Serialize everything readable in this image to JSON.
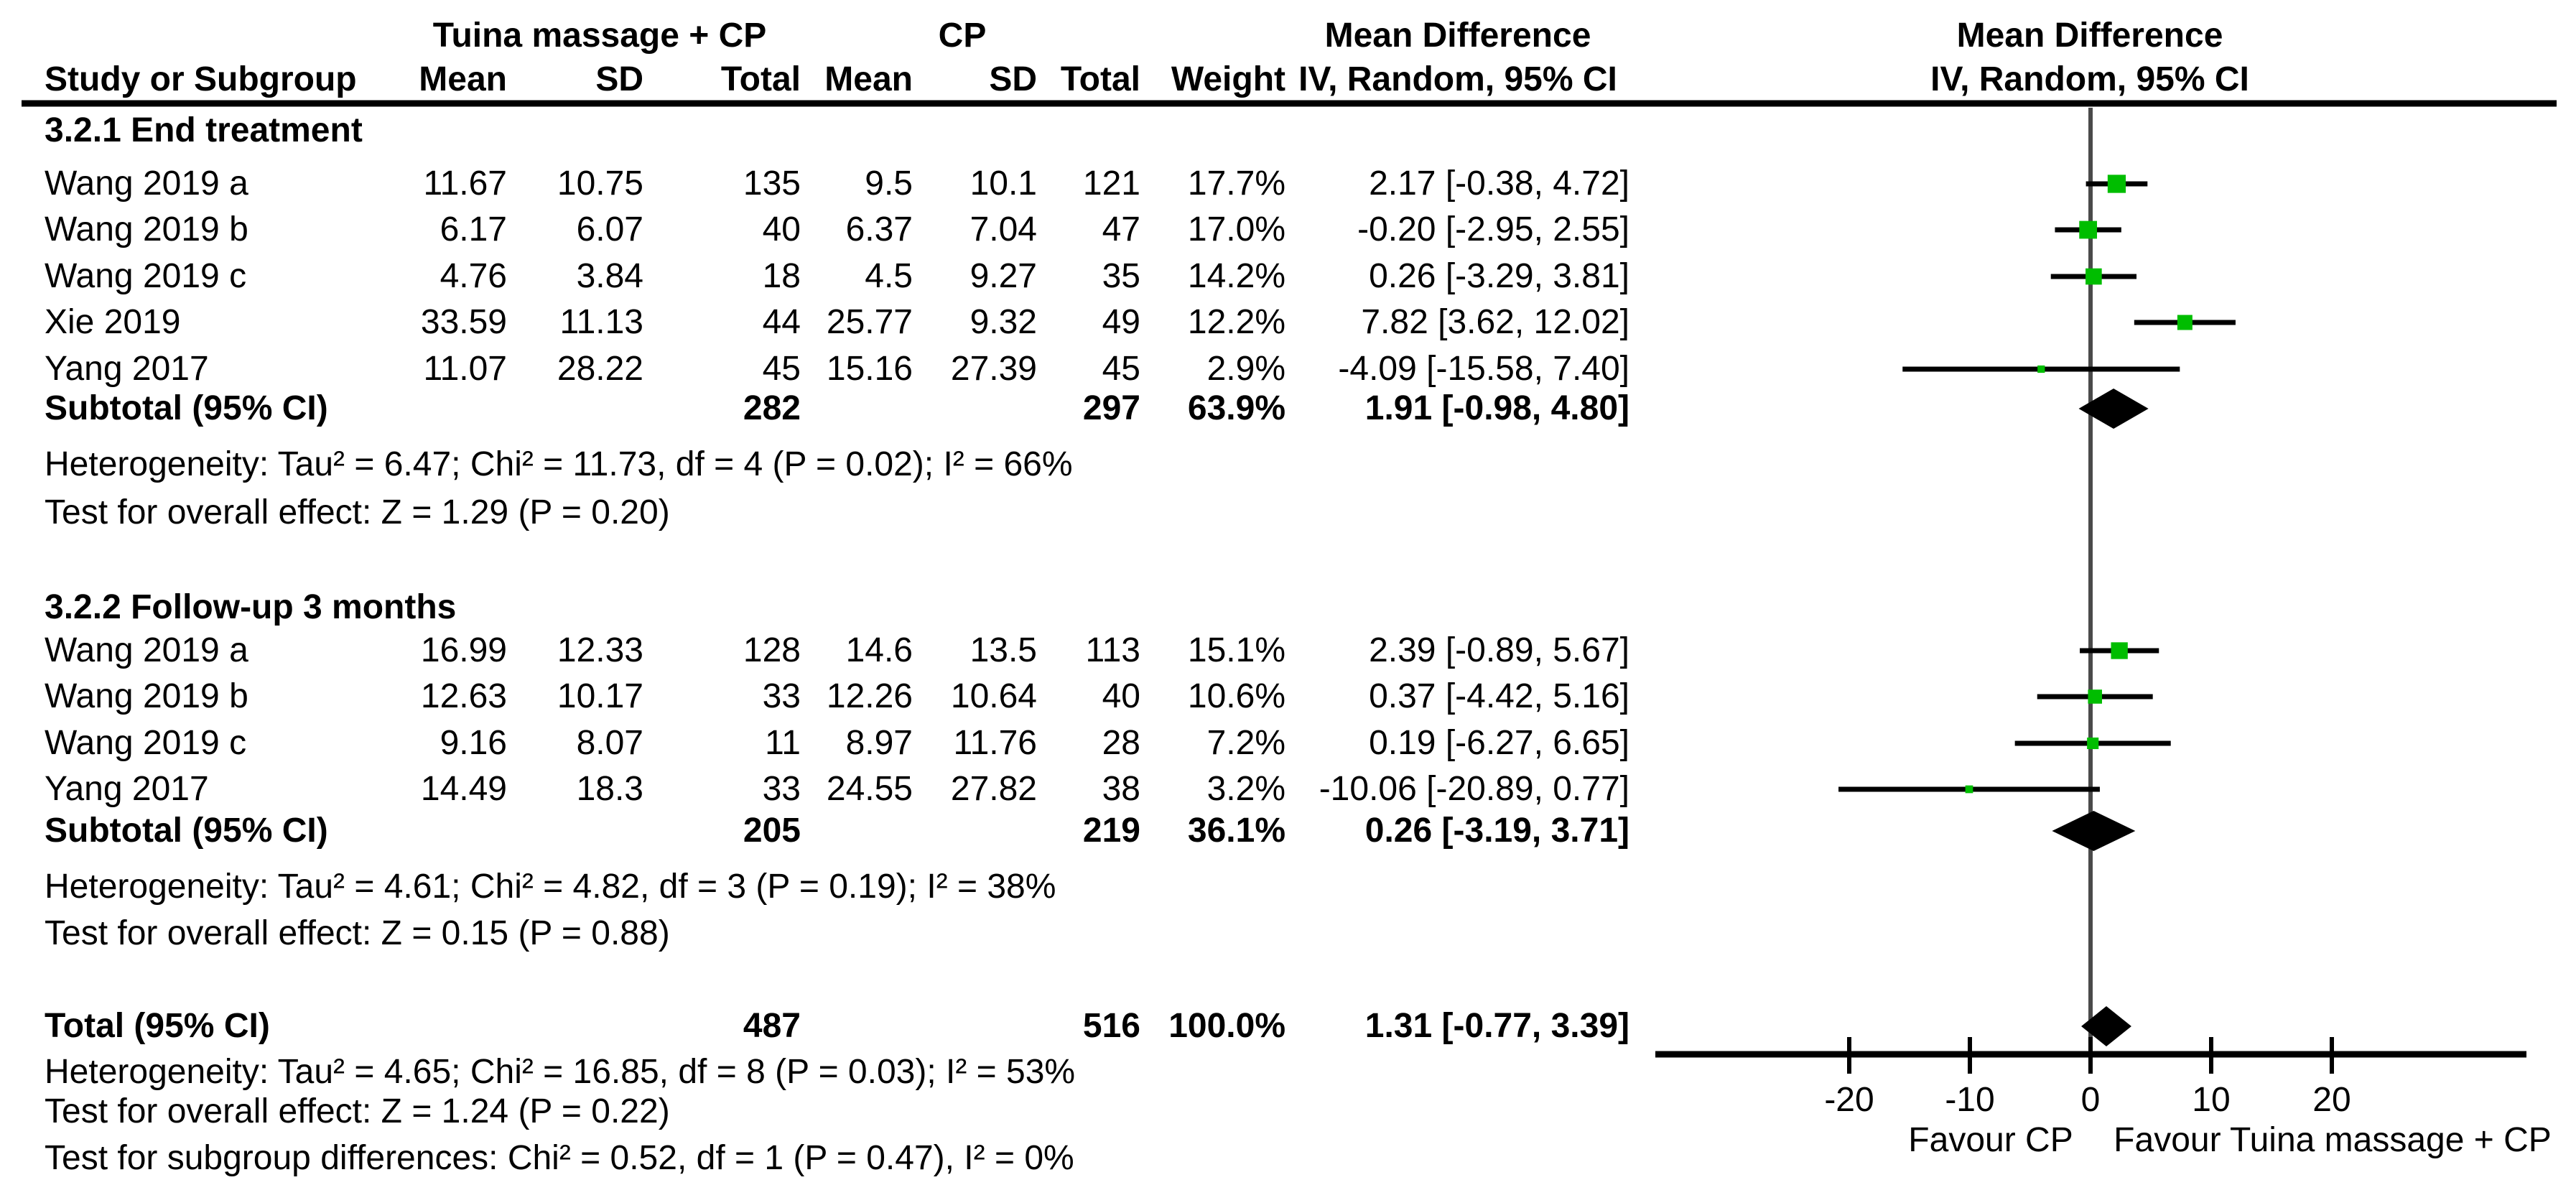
{
  "chart_data": {
    "type": "scatter",
    "subtype": "forest-plot",
    "effect_measure": "Mean Difference",
    "model": "IV, Random, 95% CI",
    "xlim": [
      -36,
      36
    ],
    "x_ticks": [
      -20,
      -10,
      0,
      10,
      20
    ],
    "axis": {
      "favour_left": "Favour CP",
      "favour_right": "Favour Tuina massage + CP"
    },
    "header": {
      "study_col": "Study or Subgroup",
      "group1": "Tuina massage + CP",
      "group2": "CP",
      "mean": "Mean",
      "sd": "SD",
      "total": "Total",
      "weight": "Weight",
      "md_line1": "Mean Difference",
      "md_line2": "IV, Random, 95% CI"
    },
    "sections": [
      {
        "label": "3.2.1 End treatment",
        "studies": [
          {
            "name": "Wang 2019 a",
            "mean1": "11.67",
            "sd1": "10.75",
            "n1": "135",
            "mean2": "9.5",
            "sd2": "10.1",
            "n2": "121",
            "weight": "17.7%",
            "ci": "2.17 [-0.38, 4.72]",
            "md": 2.17,
            "lo": -0.38,
            "hi": 4.72,
            "w": 17.7
          },
          {
            "name": "Wang 2019 b",
            "mean1": "6.17",
            "sd1": "6.07",
            "n1": "40",
            "mean2": "6.37",
            "sd2": "7.04",
            "n2": "47",
            "weight": "17.0%",
            "ci": "-0.20 [-2.95, 2.55]",
            "md": -0.2,
            "lo": -2.95,
            "hi": 2.55,
            "w": 17.0
          },
          {
            "name": "Wang 2019 c",
            "mean1": "4.76",
            "sd1": "3.84",
            "n1": "18",
            "mean2": "4.5",
            "sd2": "9.27",
            "n2": "35",
            "weight": "14.2%",
            "ci": "0.26 [-3.29, 3.81]",
            "md": 0.26,
            "lo": -3.29,
            "hi": 3.81,
            "w": 14.2
          },
          {
            "name": "Xie 2019",
            "mean1": "33.59",
            "sd1": "11.13",
            "n1": "44",
            "mean2": "25.77",
            "sd2": "9.32",
            "n2": "49",
            "weight": "12.2%",
            "ci": "7.82 [3.62, 12.02]",
            "md": 7.82,
            "lo": 3.62,
            "hi": 12.02,
            "w": 12.2
          },
          {
            "name": "Yang 2017",
            "mean1": "11.07",
            "sd1": "28.22",
            "n1": "45",
            "mean2": "15.16",
            "sd2": "27.39",
            "n2": "45",
            "weight": "2.9%",
            "ci": "-4.09 [-15.58, 7.40]",
            "md": -4.09,
            "lo": -15.58,
            "hi": 7.4,
            "w": 2.9
          }
        ],
        "subtotal": {
          "label": "Subtotal (95% CI)",
          "n1": "282",
          "n2": "297",
          "weight": "63.9%",
          "ci": "1.91 [-0.98, 4.80]",
          "md": 1.91,
          "lo": -0.98,
          "hi": 4.8
        },
        "heterogeneity": "Heterogeneity: Tau² = 6.47; Chi² = 11.73, df = 4 (P = 0.02); I² = 66%",
        "overall": "Test for overall effect: Z = 1.29 (P = 0.20)"
      },
      {
        "label": "3.2.2 Follow-up 3 months",
        "studies": [
          {
            "name": "Wang 2019 a",
            "mean1": "16.99",
            "sd1": "12.33",
            "n1": "128",
            "mean2": "14.6",
            "sd2": "13.5",
            "n2": "113",
            "weight": "15.1%",
            "ci": "2.39 [-0.89, 5.67]",
            "md": 2.39,
            "lo": -0.89,
            "hi": 5.67,
            "w": 15.1
          },
          {
            "name": "Wang 2019 b",
            "mean1": "12.63",
            "sd1": "10.17",
            "n1": "33",
            "mean2": "12.26",
            "sd2": "10.64",
            "n2": "40",
            "weight": "10.6%",
            "ci": "0.37 [-4.42, 5.16]",
            "md": 0.37,
            "lo": -4.42,
            "hi": 5.16,
            "w": 10.6
          },
          {
            "name": "Wang 2019 c",
            "mean1": "9.16",
            "sd1": "8.07",
            "n1": "11",
            "mean2": "8.97",
            "sd2": "11.76",
            "n2": "28",
            "weight": "7.2%",
            "ci": "0.19 [-6.27, 6.65]",
            "md": 0.19,
            "lo": -6.27,
            "hi": 6.65,
            "w": 7.2
          },
          {
            "name": "Yang 2017",
            "mean1": "14.49",
            "sd1": "18.3",
            "n1": "33",
            "mean2": "24.55",
            "sd2": "27.82",
            "n2": "38",
            "weight": "3.2%",
            "ci": "-10.06 [-20.89, 0.77]",
            "md": -10.06,
            "lo": -20.89,
            "hi": 0.77,
            "w": 3.2
          }
        ],
        "subtotal": {
          "label": "Subtotal (95% CI)",
          "n1": "205",
          "n2": "219",
          "weight": "36.1%",
          "ci": "0.26 [-3.19, 3.71]",
          "md": 0.26,
          "lo": -3.19,
          "hi": 3.71
        },
        "heterogeneity": "Heterogeneity: Tau² = 4.61; Chi² = 4.82, df = 3 (P = 0.19); I² = 38%",
        "overall": "Test for overall effect: Z = 0.15 (P = 0.88)"
      }
    ],
    "total": {
      "label": "Total (95% CI)",
      "n1": "487",
      "n2": "516",
      "weight": "100.0%",
      "ci": "1.31 [-0.77, 3.39]",
      "md": 1.31,
      "lo": -0.77,
      "hi": 3.39,
      "heterogeneity": "Heterogeneity: Tau² = 4.65; Chi² = 16.85, df = 8 (P = 0.03); I² = 53%",
      "overall": "Test for overall effect: Z = 1.24 (P = 0.22)",
      "subgroup_diff": "Test for subgroup differences: Chi² = 0.52, df = 1 (P = 0.47), I² = 0%"
    },
    "colors": {
      "marker_green": "#00bd00",
      "diamond_black": "#000000",
      "zero_line_gray": "#4a4a4a",
      "text": "#000000",
      "background": "#ffffff"
    }
  }
}
